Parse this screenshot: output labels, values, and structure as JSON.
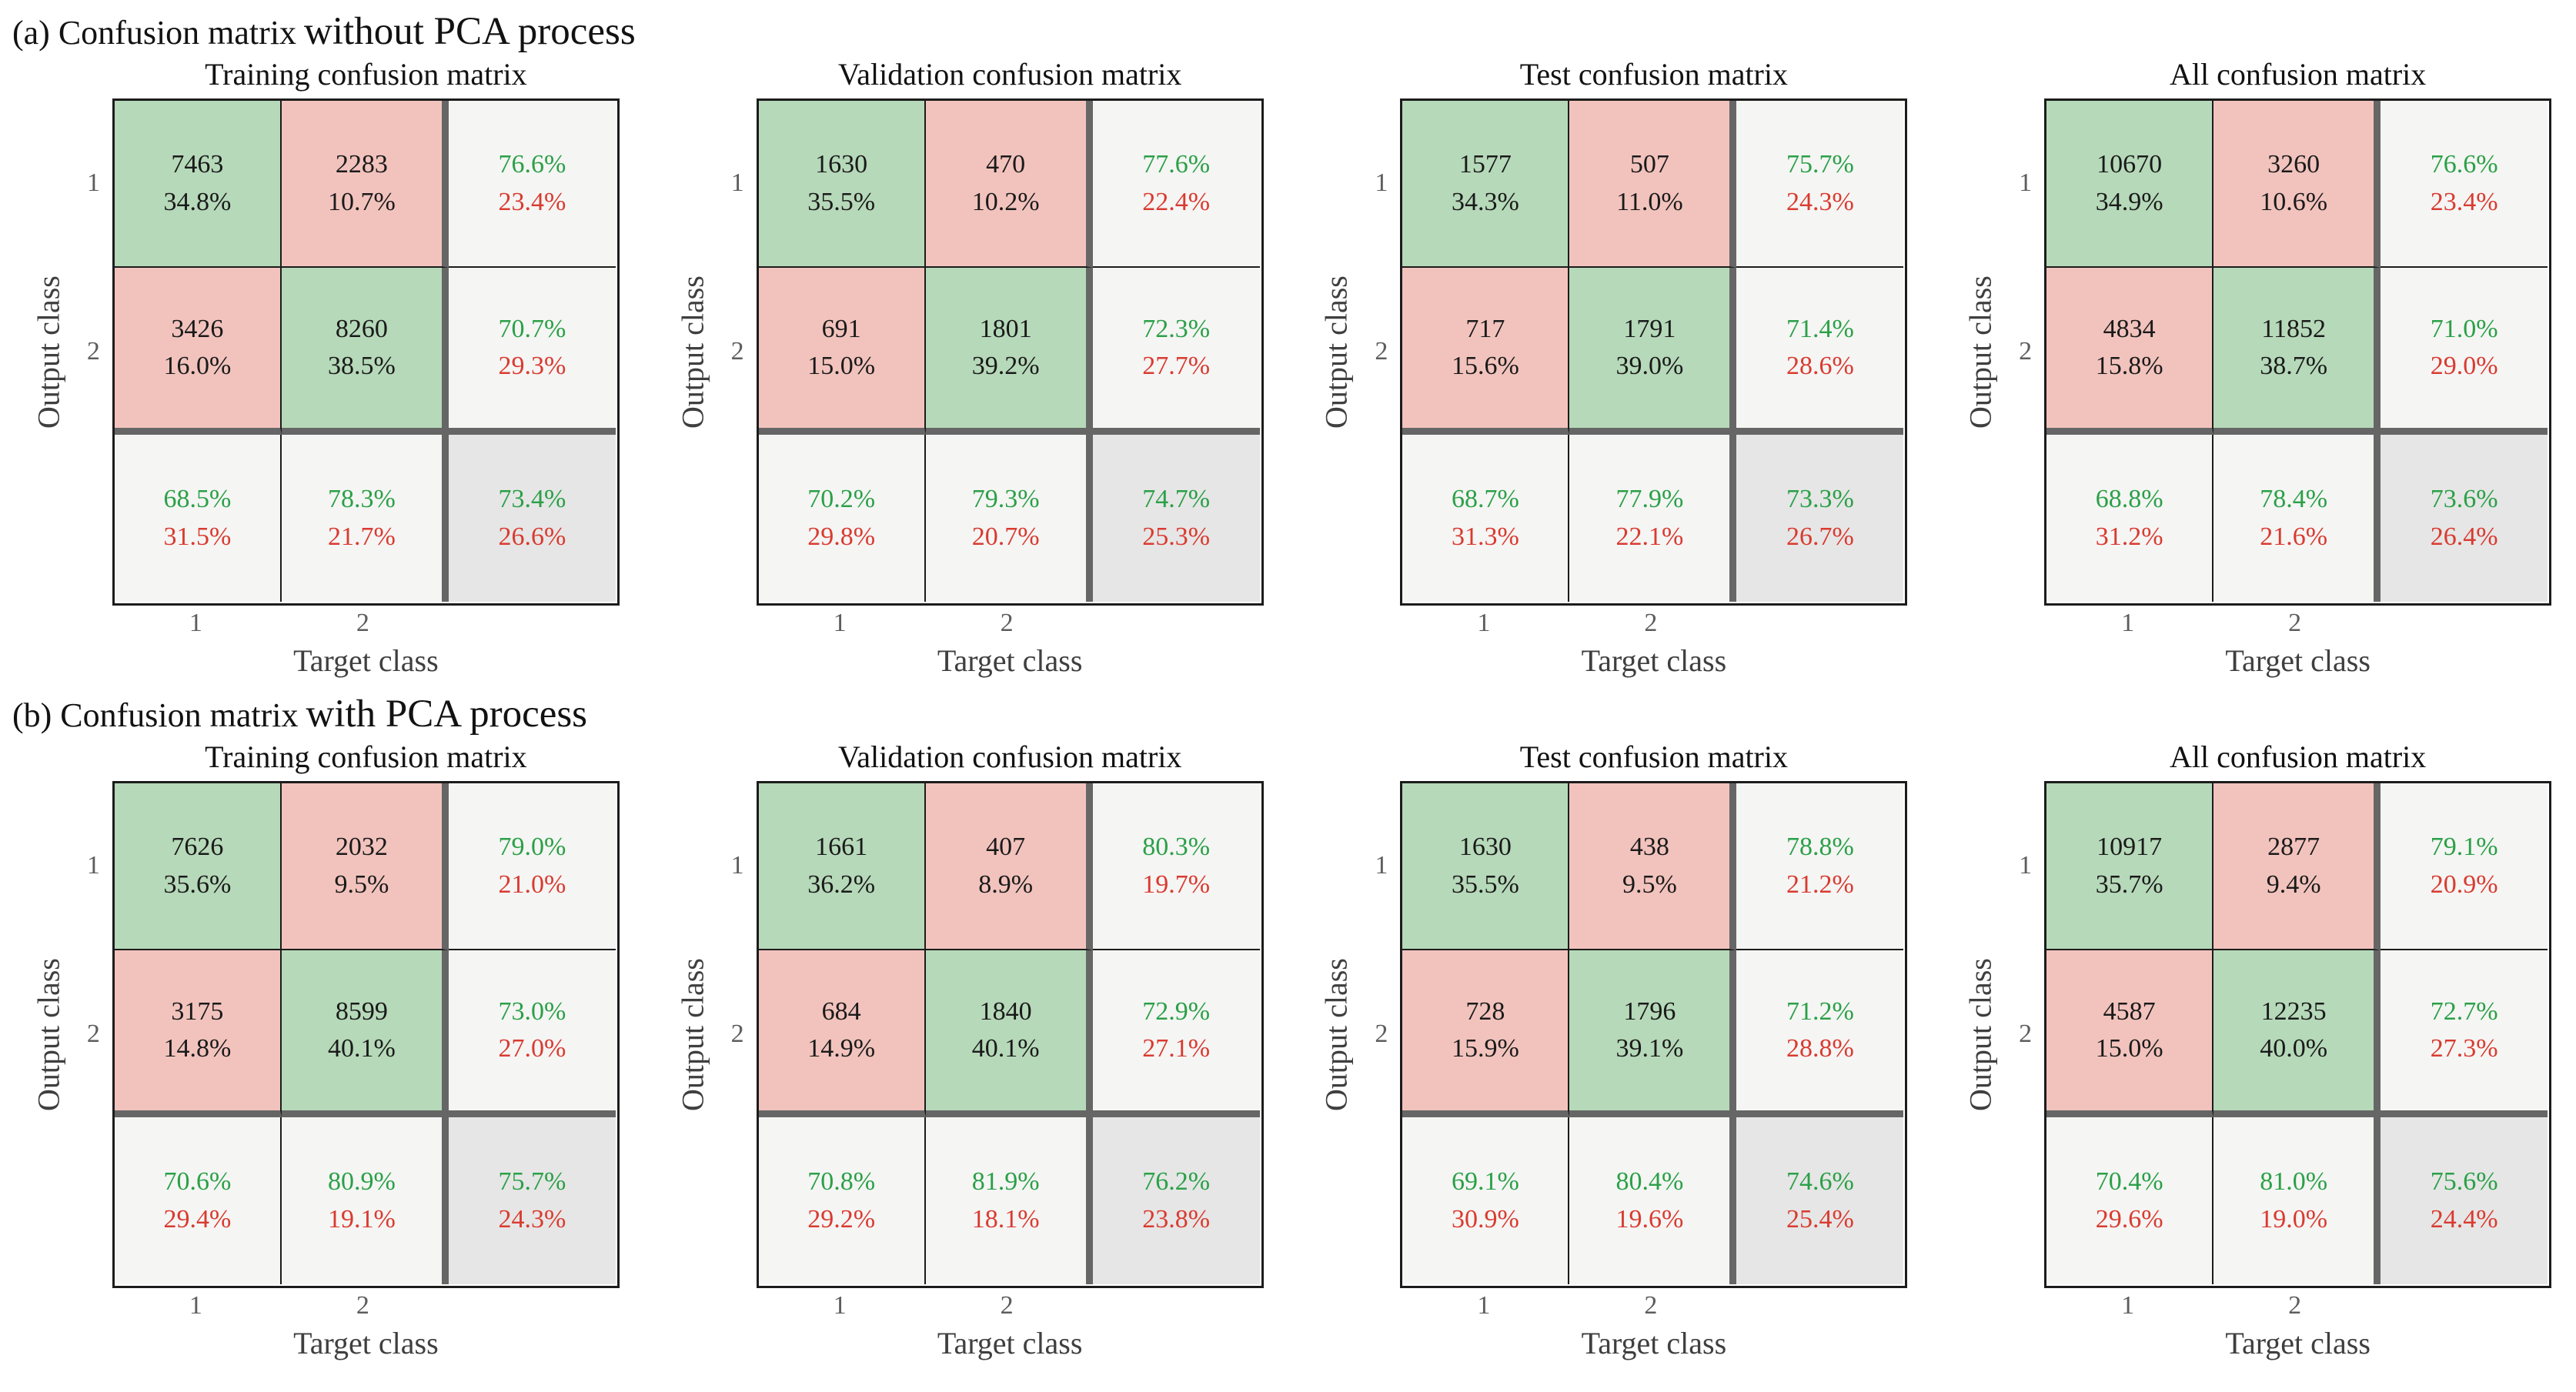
{
  "axis": {
    "output_label": "Output class",
    "target_label": "Target class",
    "ticks": [
      "1",
      "2"
    ]
  },
  "colors": {
    "green_cell": "#b6d9b9",
    "pink_cell": "#f2c3bd",
    "summary_cell": "#f5f5f4",
    "corner_cell": "#e6e6e6",
    "green_text": "#2ba047",
    "red_text": "#d93b30",
    "thick_border": "#666666",
    "thin_border": "#1c1c1c",
    "tick_text": "#5d5d5d",
    "axis_text": "#3f3f3f",
    "title_text": "#121212",
    "count_text": "#1a1a1a"
  },
  "sections": [
    {
      "header_prefix": "(a) Confusion matrix",
      "header_emphasis": "without PCA process",
      "matrices": [
        {
          "title": "Training confusion matrix",
          "cells": {
            "r1c1": {
              "count": "7463",
              "pct": "34.8%"
            },
            "r1c2": {
              "count": "2283",
              "pct": "10.7%"
            },
            "r1sum": {
              "green": "76.6%",
              "red": "23.4%"
            },
            "r2c1": {
              "count": "3426",
              "pct": "16.0%"
            },
            "r2c2": {
              "count": "8260",
              "pct": "38.5%"
            },
            "r2sum": {
              "green": "70.7%",
              "red": "29.3%"
            },
            "c1sum": {
              "green": "68.5%",
              "red": "31.5%"
            },
            "c2sum": {
              "green": "78.3%",
              "red": "21.7%"
            },
            "total": {
              "green": "73.4%",
              "red": "26.6%"
            }
          }
        },
        {
          "title": "Validation confusion matrix",
          "cells": {
            "r1c1": {
              "count": "1630",
              "pct": "35.5%"
            },
            "r1c2": {
              "count": "470",
              "pct": "10.2%"
            },
            "r1sum": {
              "green": "77.6%",
              "red": "22.4%"
            },
            "r2c1": {
              "count": "691",
              "pct": "15.0%"
            },
            "r2c2": {
              "count": "1801",
              "pct": "39.2%"
            },
            "r2sum": {
              "green": "72.3%",
              "red": "27.7%"
            },
            "c1sum": {
              "green": "70.2%",
              "red": "29.8%"
            },
            "c2sum": {
              "green": "79.3%",
              "red": "20.7%"
            },
            "total": {
              "green": "74.7%",
              "red": "25.3%"
            }
          }
        },
        {
          "title": "Test confusion matrix",
          "cells": {
            "r1c1": {
              "count": "1577",
              "pct": "34.3%"
            },
            "r1c2": {
              "count": "507",
              "pct": "11.0%"
            },
            "r1sum": {
              "green": "75.7%",
              "red": "24.3%"
            },
            "r2c1": {
              "count": "717",
              "pct": "15.6%"
            },
            "r2c2": {
              "count": "1791",
              "pct": "39.0%"
            },
            "r2sum": {
              "green": "71.4%",
              "red": "28.6%"
            },
            "c1sum": {
              "green": "68.7%",
              "red": "31.3%"
            },
            "c2sum": {
              "green": "77.9%",
              "red": "22.1%"
            },
            "total": {
              "green": "73.3%",
              "red": "26.7%"
            }
          }
        },
        {
          "title": "All confusion matrix",
          "cells": {
            "r1c1": {
              "count": "10670",
              "pct": "34.9%"
            },
            "r1c2": {
              "count": "3260",
              "pct": "10.6%"
            },
            "r1sum": {
              "green": "76.6%",
              "red": "23.4%"
            },
            "r2c1": {
              "count": "4834",
              "pct": "15.8%"
            },
            "r2c2": {
              "count": "11852",
              "pct": "38.7%"
            },
            "r2sum": {
              "green": "71.0%",
              "red": "29.0%"
            },
            "c1sum": {
              "green": "68.8%",
              "red": "31.2%"
            },
            "c2sum": {
              "green": "78.4%",
              "red": "21.6%"
            },
            "total": {
              "green": "73.6%",
              "red": "26.4%"
            }
          }
        }
      ]
    },
    {
      "header_prefix": "(b) Confusion matrix",
      "header_emphasis": "with PCA process",
      "matrices": [
        {
          "title": "Training confusion matrix",
          "cells": {
            "r1c1": {
              "count": "7626",
              "pct": "35.6%"
            },
            "r1c2": {
              "count": "2032",
              "pct": "9.5%"
            },
            "r1sum": {
              "green": "79.0%",
              "red": "21.0%"
            },
            "r2c1": {
              "count": "3175",
              "pct": "14.8%"
            },
            "r2c2": {
              "count": "8599",
              "pct": "40.1%"
            },
            "r2sum": {
              "green": "73.0%",
              "red": "27.0%"
            },
            "c1sum": {
              "green": "70.6%",
              "red": "29.4%"
            },
            "c2sum": {
              "green": "80.9%",
              "red": "19.1%"
            },
            "total": {
              "green": "75.7%",
              "red": "24.3%"
            }
          }
        },
        {
          "title": "Validation confusion matrix",
          "cells": {
            "r1c1": {
              "count": "1661",
              "pct": "36.2%"
            },
            "r1c2": {
              "count": "407",
              "pct": "8.9%"
            },
            "r1sum": {
              "green": "80.3%",
              "red": "19.7%"
            },
            "r2c1": {
              "count": "684",
              "pct": "14.9%"
            },
            "r2c2": {
              "count": "1840",
              "pct": "40.1%"
            },
            "r2sum": {
              "green": "72.9%",
              "red": "27.1%"
            },
            "c1sum": {
              "green": "70.8%",
              "red": "29.2%"
            },
            "c2sum": {
              "green": "81.9%",
              "red": "18.1%"
            },
            "total": {
              "green": "76.2%",
              "red": "23.8%"
            }
          }
        },
        {
          "title": "Test confusion matrix",
          "cells": {
            "r1c1": {
              "count": "1630",
              "pct": "35.5%"
            },
            "r1c2": {
              "count": "438",
              "pct": "9.5%"
            },
            "r1sum": {
              "green": "78.8%",
              "red": "21.2%"
            },
            "r2c1": {
              "count": "728",
              "pct": "15.9%"
            },
            "r2c2": {
              "count": "1796",
              "pct": "39.1%"
            },
            "r2sum": {
              "green": "71.2%",
              "red": "28.8%"
            },
            "c1sum": {
              "green": "69.1%",
              "red": "30.9%"
            },
            "c2sum": {
              "green": "80.4%",
              "red": "19.6%"
            },
            "total": {
              "green": "74.6%",
              "red": "25.4%"
            }
          }
        },
        {
          "title": "All confusion matrix",
          "cells": {
            "r1c1": {
              "count": "10917",
              "pct": "35.7%"
            },
            "r1c2": {
              "count": "2877",
              "pct": "9.4%"
            },
            "r1sum": {
              "green": "79.1%",
              "red": "20.9%"
            },
            "r2c1": {
              "count": "4587",
              "pct": "15.0%"
            },
            "r2c2": {
              "count": "12235",
              "pct": "40.0%"
            },
            "r2sum": {
              "green": "72.7%",
              "red": "27.3%"
            },
            "c1sum": {
              "green": "70.4%",
              "red": "29.6%"
            },
            "c2sum": {
              "green": "81.0%",
              "red": "19.0%"
            },
            "total": {
              "green": "75.6%",
              "red": "24.4%"
            }
          }
        }
      ]
    }
  ],
  "chart_data": [
    {
      "type": "heatmap",
      "section": "(a) without PCA process",
      "title": "Training confusion matrix",
      "xlabel": "Target class",
      "ylabel": "Output class",
      "classes": [
        "1",
        "2"
      ],
      "counts": [
        [
          7463,
          2283
        ],
        [
          3426,
          8260
        ]
      ],
      "count_pcts": [
        [
          "34.8%",
          "10.7%"
        ],
        [
          "16.0%",
          "38.5%"
        ]
      ],
      "row_summary_green_red": [
        [
          "76.6%",
          "23.4%"
        ],
        [
          "70.7%",
          "29.3%"
        ]
      ],
      "col_summary_green_red": [
        [
          "68.5%",
          "31.5%"
        ],
        [
          "78.3%",
          "21.7%"
        ]
      ],
      "overall_green_red": [
        "73.4%",
        "26.6%"
      ]
    },
    {
      "type": "heatmap",
      "section": "(a) without PCA process",
      "title": "Validation confusion matrix",
      "xlabel": "Target class",
      "ylabel": "Output class",
      "classes": [
        "1",
        "2"
      ],
      "counts": [
        [
          1630,
          470
        ],
        [
          691,
          1801
        ]
      ],
      "count_pcts": [
        [
          "35.5%",
          "10.2%"
        ],
        [
          "15.0%",
          "39.2%"
        ]
      ],
      "row_summary_green_red": [
        [
          "77.6%",
          "22.4%"
        ],
        [
          "72.3%",
          "27.7%"
        ]
      ],
      "col_summary_green_red": [
        [
          "70.2%",
          "29.8%"
        ],
        [
          "79.3%",
          "20.7%"
        ]
      ],
      "overall_green_red": [
        "74.7%",
        "25.3%"
      ]
    },
    {
      "type": "heatmap",
      "section": "(a) without PCA process",
      "title": "Test confusion matrix",
      "xlabel": "Target class",
      "ylabel": "Output class",
      "classes": [
        "1",
        "2"
      ],
      "counts": [
        [
          1577,
          507
        ],
        [
          717,
          1791
        ]
      ],
      "count_pcts": [
        [
          "34.3%",
          "11.0%"
        ],
        [
          "15.6%",
          "39.0%"
        ]
      ],
      "row_summary_green_red": [
        [
          "75.7%",
          "24.3%"
        ],
        [
          "71.4%",
          "28.6%"
        ]
      ],
      "col_summary_green_red": [
        [
          "68.7%",
          "31.3%"
        ],
        [
          "77.9%",
          "22.1%"
        ]
      ],
      "overall_green_red": [
        "73.3%",
        "26.7%"
      ]
    },
    {
      "type": "heatmap",
      "section": "(a) without PCA process",
      "title": "All confusion matrix",
      "xlabel": "Target class",
      "ylabel": "Output class",
      "classes": [
        "1",
        "2"
      ],
      "counts": [
        [
          10670,
          3260
        ],
        [
          4834,
          11852
        ]
      ],
      "count_pcts": [
        [
          "34.9%",
          "10.6%"
        ],
        [
          "15.8%",
          "38.7%"
        ]
      ],
      "row_summary_green_red": [
        [
          "76.6%",
          "23.4%"
        ],
        [
          "71.0%",
          "29.0%"
        ]
      ],
      "col_summary_green_red": [
        [
          "68.8%",
          "31.2%"
        ],
        [
          "78.4%",
          "21.6%"
        ]
      ],
      "overall_green_red": [
        "73.6%",
        "26.4%"
      ]
    },
    {
      "type": "heatmap",
      "section": "(b) with PCA process",
      "title": "Training confusion matrix",
      "xlabel": "Target class",
      "ylabel": "Output class",
      "classes": [
        "1",
        "2"
      ],
      "counts": [
        [
          7626,
          2032
        ],
        [
          3175,
          8599
        ]
      ],
      "count_pcts": [
        [
          "35.6%",
          "9.5%"
        ],
        [
          "14.8%",
          "40.1%"
        ]
      ],
      "row_summary_green_red": [
        [
          "79.0%",
          "21.0%"
        ],
        [
          "73.0%",
          "27.0%"
        ]
      ],
      "col_summary_green_red": [
        [
          "70.6%",
          "29.4%"
        ],
        [
          "80.9%",
          "19.1%"
        ]
      ],
      "overall_green_red": [
        "75.7%",
        "24.3%"
      ]
    },
    {
      "type": "heatmap",
      "section": "(b) with PCA process",
      "title": "Validation confusion matrix",
      "xlabel": "Target class",
      "ylabel": "Output class",
      "classes": [
        "1",
        "2"
      ],
      "counts": [
        [
          1661,
          407
        ],
        [
          684,
          1840
        ]
      ],
      "count_pcts": [
        [
          "36.2%",
          "8.9%"
        ],
        [
          "14.9%",
          "40.1%"
        ]
      ],
      "row_summary_green_red": [
        [
          "80.3%",
          "19.7%"
        ],
        [
          "72.9%",
          "27.1%"
        ]
      ],
      "col_summary_green_red": [
        [
          "70.8%",
          "29.2%"
        ],
        [
          "81.9%",
          "18.1%"
        ]
      ],
      "overall_green_red": [
        "76.2%",
        "23.8%"
      ]
    },
    {
      "type": "heatmap",
      "section": "(b) with PCA process",
      "title": "Test confusion matrix",
      "xlabel": "Target class",
      "ylabel": "Output class",
      "classes": [
        "1",
        "2"
      ],
      "counts": [
        [
          1630,
          438
        ],
        [
          728,
          1796
        ]
      ],
      "count_pcts": [
        [
          "35.5%",
          "9.5%"
        ],
        [
          "15.9%",
          "39.1%"
        ]
      ],
      "row_summary_green_red": [
        [
          "78.8%",
          "21.2%"
        ],
        [
          "71.2%",
          "28.8%"
        ]
      ],
      "col_summary_green_red": [
        [
          "69.1%",
          "30.9%"
        ],
        [
          "80.4%",
          "19.6%"
        ]
      ],
      "overall_green_red": [
        "74.6%",
        "25.4%"
      ]
    },
    {
      "type": "heatmap",
      "section": "(b) with PCA process",
      "title": "All confusion matrix",
      "xlabel": "Target class",
      "ylabel": "Output class",
      "classes": [
        "1",
        "2"
      ],
      "counts": [
        [
          10917,
          2877
        ],
        [
          4587,
          12235
        ]
      ],
      "count_pcts": [
        [
          "35.7%",
          "9.4%"
        ],
        [
          "15.0%",
          "40.0%"
        ]
      ],
      "row_summary_green_red": [
        [
          "79.1%",
          "20.9%"
        ],
        [
          "72.7%",
          "27.3%"
        ]
      ],
      "col_summary_green_red": [
        [
          "70.4%",
          "29.6%"
        ],
        [
          "81.0%",
          "19.0%"
        ]
      ],
      "overall_green_red": [
        "75.6%",
        "24.4%"
      ]
    }
  ]
}
